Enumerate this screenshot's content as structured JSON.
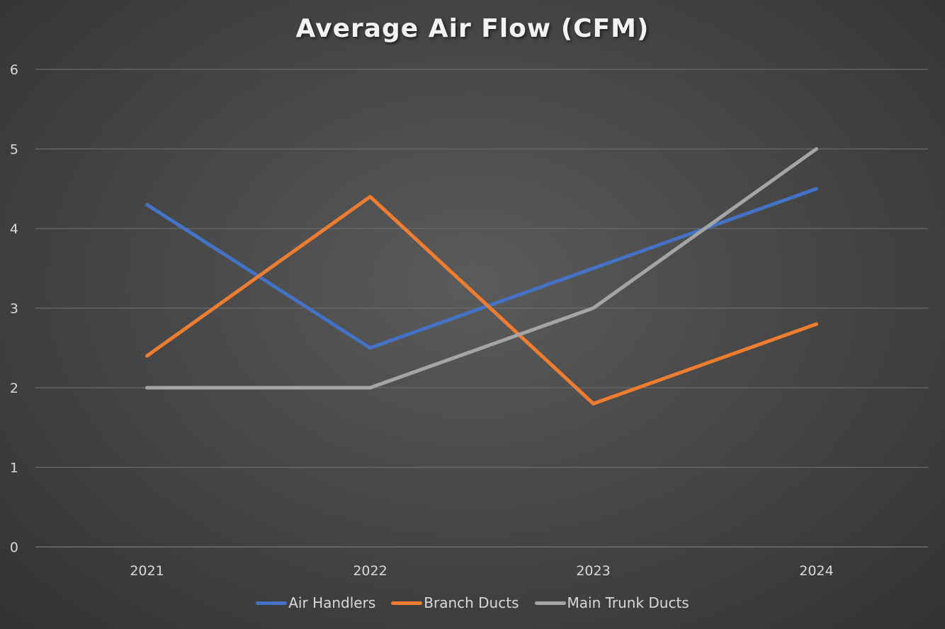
{
  "chart_data": {
    "type": "line",
    "title": "Average Air Flow (CFM)",
    "xlabel": "",
    "ylabel": "",
    "categories": [
      "2021",
      "2022",
      "2023",
      "2024"
    ],
    "ylim": [
      0,
      6
    ],
    "yticks": [
      "0",
      "1",
      "2",
      "3",
      "4",
      "5",
      "6"
    ],
    "grid": true,
    "legend_position": "bottom",
    "series": [
      {
        "name": "Air Handlers",
        "color": "#4472c4",
        "values": [
          4.3,
          2.5,
          3.5,
          4.5
        ]
      },
      {
        "name": "Branch Ducts",
        "color": "#ed7d31",
        "values": [
          2.4,
          4.4,
          1.8,
          2.8
        ]
      },
      {
        "name": "Main Trunk Ducts",
        "color": "#a5a5a5",
        "values": [
          2.0,
          2.0,
          3.0,
          5.0
        ]
      }
    ]
  }
}
